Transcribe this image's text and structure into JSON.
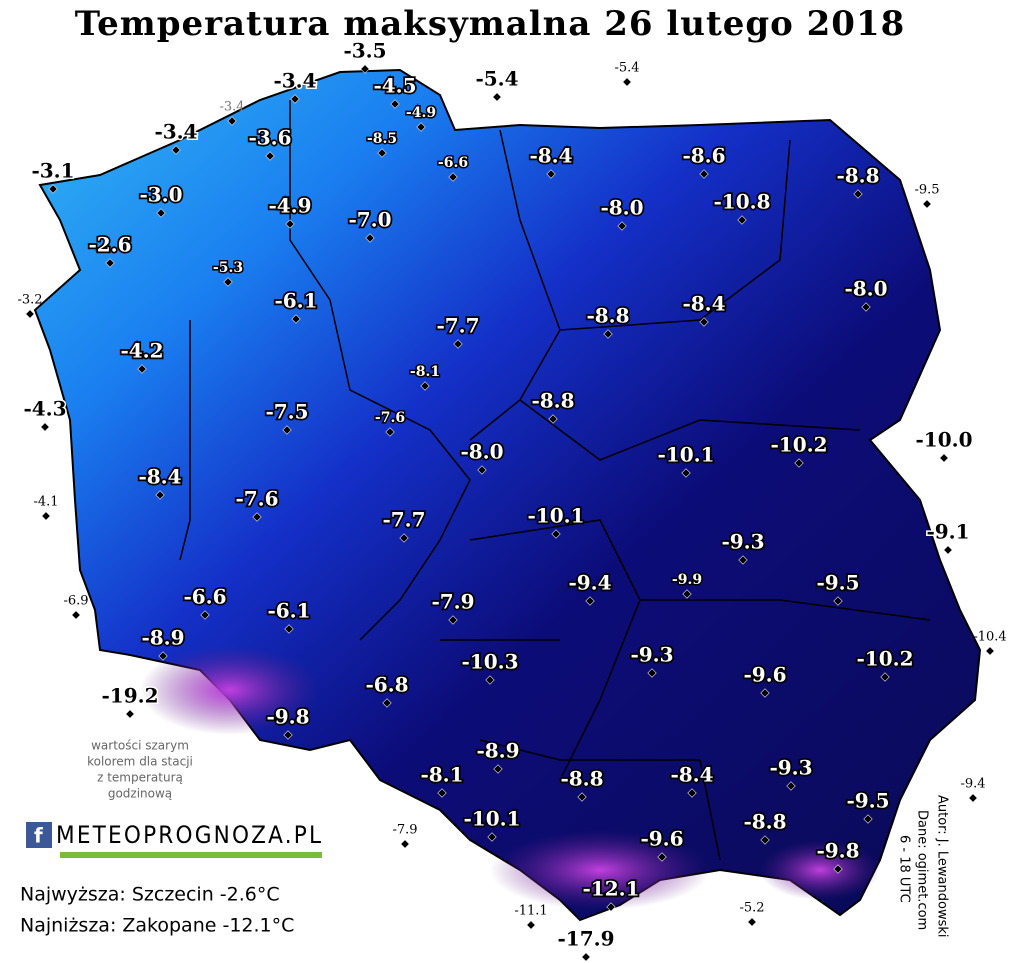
{
  "title": "Temperatura maksymalna 26 lutego 2018",
  "stations": [
    "-3.5",
    "-3.4",
    "-4.5",
    "-5.4",
    "-5.4",
    "-3.4",
    "-4.9",
    "-3.4",
    "-3.6",
    "-8.5",
    "-6.6",
    "-8.4",
    "-8.6",
    "-8.8",
    "-9.5",
    "-3.1",
    "-3.0",
    "-4.9",
    "-7.0",
    "-8.0",
    "-10.8",
    "-2.6",
    "-5.3",
    "-3.2",
    "-6.1",
    "-8.0",
    "-8.8",
    "-8.4",
    "-7.7",
    "-4.2",
    "-8.1",
    "-4.3",
    "-7.5",
    "-7.6",
    "-8.8",
    "-10.1",
    "-10.2",
    "-10.0",
    "-8.0",
    "-8.4",
    "-4.1",
    "-7.6",
    "-10.1",
    "-7.7",
    "-9.1",
    "-9.3",
    "-9.4",
    "-9.9",
    "-9.5",
    "-6.9",
    "-6.6",
    "-6.1",
    "-7.9",
    "-8.9",
    "-10.4",
    "-10.3",
    "-9.3",
    "-9.6",
    "-10.2",
    "-19.2",
    "-6.8",
    "-9.8",
    "-8.9",
    "-8.1",
    "-8.8",
    "-8.4",
    "-9.3",
    "-9.4",
    "-9.5",
    "-10.1",
    "-8.8",
    "-7.9",
    "-9.6",
    "-9.8",
    "-12.1",
    "-11.1",
    "-5.2",
    "-17.9"
  ],
  "note": [
    "wartości szarym",
    "kolorem dla stacji",
    "z temperaturą",
    "godzinową"
  ],
  "logo": "METEOPROGNOZA.PL",
  "summary": [
    "Najwyższa: Szczecin -2.6°C",
    "Najniższa: Zakopane -12.1°C"
  ],
  "credits": [
    "Autor: J. Lewandowski",
    "Dane: ogimet.com",
    "6 - 18 UTC"
  ]
}
